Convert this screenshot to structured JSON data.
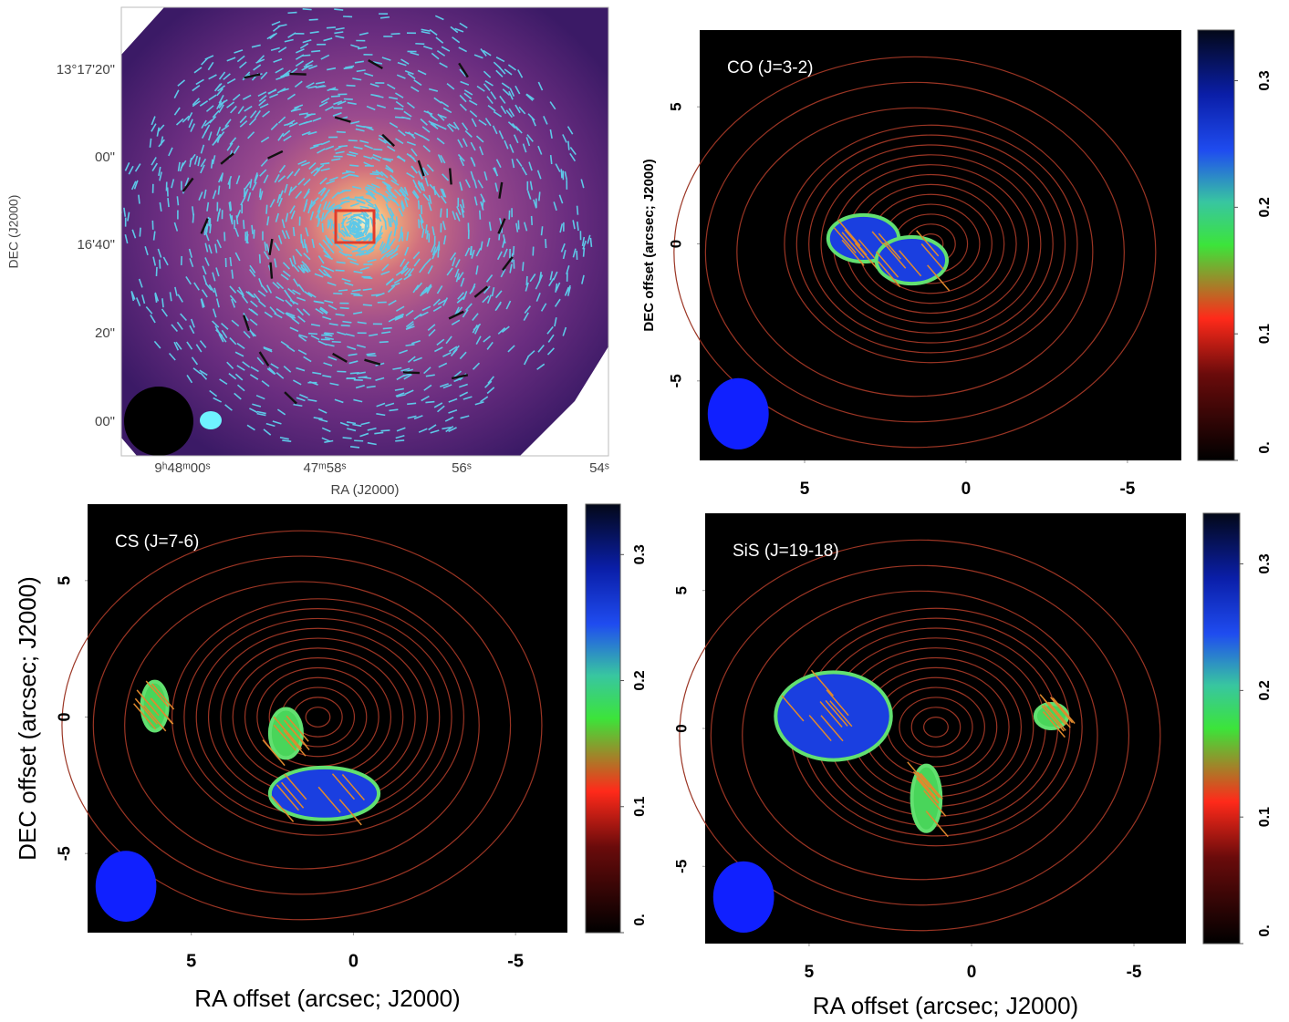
{
  "chart_data": [
    {
      "type": "polarization-map",
      "xlabel": "RA (J2000)",
      "ylabel": "DEC (J2000)",
      "xticks": [
        "9ʰ48ᵐ00ˢ",
        "47ᵐ58ˢ",
        "56ˢ",
        "54ˢ"
      ],
      "yticks": [
        "13°17'20\"",
        "00\"",
        "16'40\"",
        "20\"",
        "00\""
      ]
    },
    {
      "type": "line-map",
      "annotation": "CO (J=3-2)",
      "ylabel": "DEC offset (arcsec; J2000)",
      "xlim": [
        8.25,
        -6.67
      ],
      "ylim": [
        -7.9,
        7.8
      ],
      "xticks": [
        5,
        0,
        -5
      ],
      "yticks": [
        5,
        0,
        -5
      ],
      "clim": [
        0,
        0.34
      ],
      "cticks": [
        {
          "value": 0,
          "label": "0."
        },
        0.1,
        0.2,
        0.3
      ]
    },
    {
      "type": "line-map",
      "annotation": "CS (J=7-6)",
      "xlabel": "RA offset (arcsec; J2000)",
      "ylabel": "DEC offset (arcsec; J2000)",
      "xlim": [
        8.2,
        -6.6
      ],
      "ylim": [
        -7.9,
        7.8
      ],
      "xticks": [
        5,
        0,
        -5
      ],
      "yticks": [
        5,
        0,
        -5
      ],
      "clim": [
        0,
        0.34
      ],
      "cticks": [
        {
          "value": 0,
          "label": "0."
        },
        0.1,
        0.2,
        0.3
      ]
    },
    {
      "type": "line-map",
      "annotation": "SiS (J=19-18)",
      "xlabel": "RA offset (arcsec; J2000)",
      "xlim": [
        8.2,
        -6.6
      ],
      "ylim": [
        -7.8,
        7.8
      ],
      "xticks": [
        5,
        0,
        -5
      ],
      "yticks": [
        5,
        0,
        -5
      ],
      "clim": [
        0,
        0.34
      ],
      "cticks": [
        {
          "value": 0,
          "label": "0."
        },
        0.1,
        0.2,
        0.3
      ]
    }
  ]
}
